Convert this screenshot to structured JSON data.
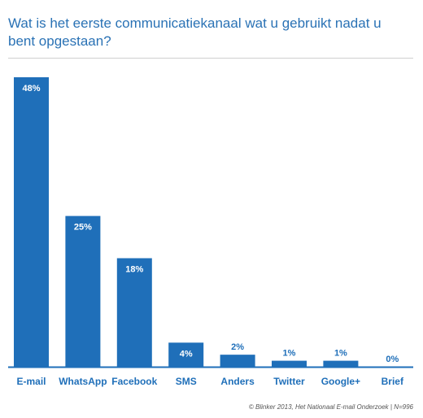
{
  "colors": {
    "title": "#2a72b5",
    "bar": "#1f6fb9",
    "value_label": "#ffffff",
    "value_label_outside": "#1f6fb9",
    "category_label": "#1f6fb9",
    "axis": "#1f6fb9"
  },
  "footer": {
    "source": "© Blinker 2013, Het Nationaal E-mail Onderzoek | N=996"
  },
  "chart_data": {
    "type": "bar",
    "title": "Wat is het eerste communicatiekanaal wat u gebruikt nadat u bent opgestaan?",
    "categories": [
      "E-mail",
      "WhatsApp",
      "Facebook",
      "SMS",
      "Anders",
      "Twitter",
      "Google+",
      "Brief"
    ],
    "values": [
      48,
      25,
      18,
      4,
      2,
      1,
      1,
      0
    ],
    "value_labels": [
      "48%",
      "25%",
      "18%",
      "4%",
      "2%",
      "1%",
      "1%",
      "0%"
    ],
    "ylim": [
      0,
      48
    ],
    "grid": false,
    "legend": "none"
  }
}
